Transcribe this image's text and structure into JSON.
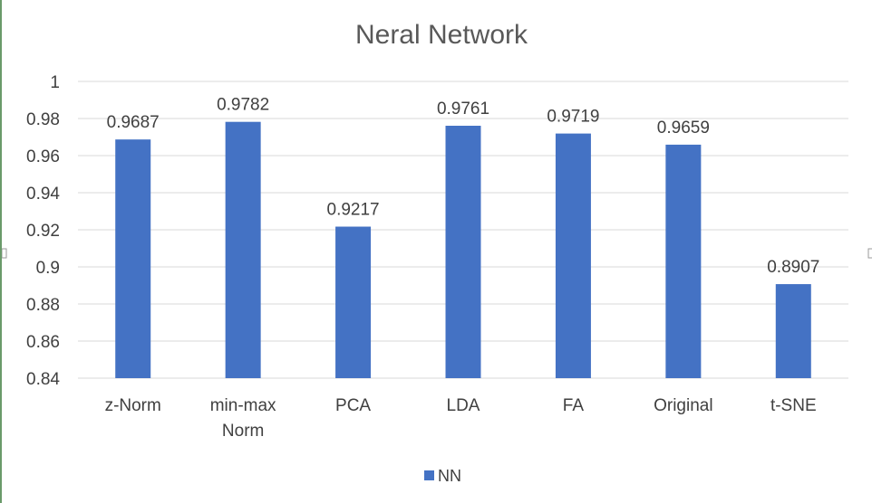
{
  "chart_data": {
    "type": "bar",
    "title": "Neral Network",
    "categories": [
      [
        "z-Norm"
      ],
      [
        "min-max",
        "Norm"
      ],
      [
        "PCA"
      ],
      [
        "LDA"
      ],
      [
        "FA"
      ],
      [
        "Original"
      ],
      [
        "t-SNE"
      ]
    ],
    "series": [
      {
        "name": "NN",
        "values": [
          0.9687,
          0.9782,
          0.9217,
          0.9761,
          0.9719,
          0.9659,
          0.8907
        ],
        "labels": [
          "0.9687",
          "0.9782",
          "0.9217",
          "0.9761",
          "0.9719",
          "0.9659",
          "0.8907"
        ]
      }
    ],
    "ylim": [
      0.84,
      1
    ],
    "yticks": [
      0.84,
      0.86,
      0.88,
      0.9,
      0.92,
      0.94,
      0.96,
      0.98,
      1
    ],
    "ytick_labels": [
      "0.84",
      "0.86",
      "0.88",
      "0.9",
      "0.92",
      "0.94",
      "0.96",
      "0.98",
      "1"
    ],
    "grid": true,
    "legend_position": "bottom",
    "colors": {
      "bar": "#4472c4"
    }
  }
}
